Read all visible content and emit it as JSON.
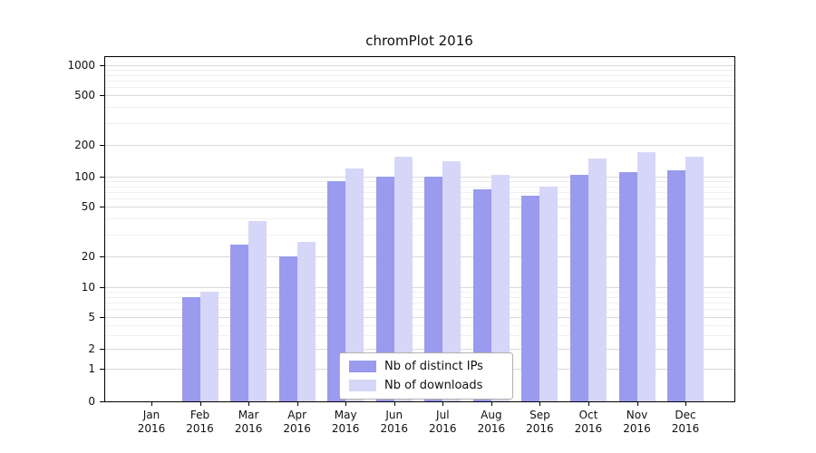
{
  "figure": {
    "title": "chromPlot 2016"
  },
  "legend": {
    "items": [
      {
        "label": "Nb of distinct IPs"
      },
      {
        "label": "Nb of downloads"
      }
    ]
  },
  "chart_data": {
    "type": "bar",
    "title": "chromPlot 2016",
    "categories": [
      "Jan",
      "Feb",
      "Mar",
      "Apr",
      "May",
      "Jun",
      "Jul",
      "Aug",
      "Sep",
      "Oct",
      "Nov",
      "Dec"
    ],
    "category_year": "2016",
    "series": [
      {
        "name": "Nb of distinct IPs",
        "color": "#9a9aee",
        "values": [
          0,
          8,
          25,
          20,
          90,
          100,
          100,
          75,
          65,
          105,
          110,
          115
        ]
      },
      {
        "name": "Nb of downloads",
        "color": "#d6d6f8",
        "values": [
          0,
          9,
          38,
          26,
          120,
          155,
          140,
          105,
          80,
          150,
          170,
          155
        ]
      }
    ],
    "yscale": "log-with-zero-baseline",
    "yticks": [
      0,
      1,
      2,
      5,
      10,
      20,
      50,
      100,
      200,
      500,
      1000
    ],
    "yticks_minor": [
      3,
      4,
      6,
      7,
      8,
      9,
      30,
      40,
      60,
      70,
      80,
      90,
      300,
      400,
      600,
      700,
      800,
      900
    ],
    "ylim": [
      0,
      1400
    ],
    "grid": true,
    "legend_position": "lower center"
  }
}
